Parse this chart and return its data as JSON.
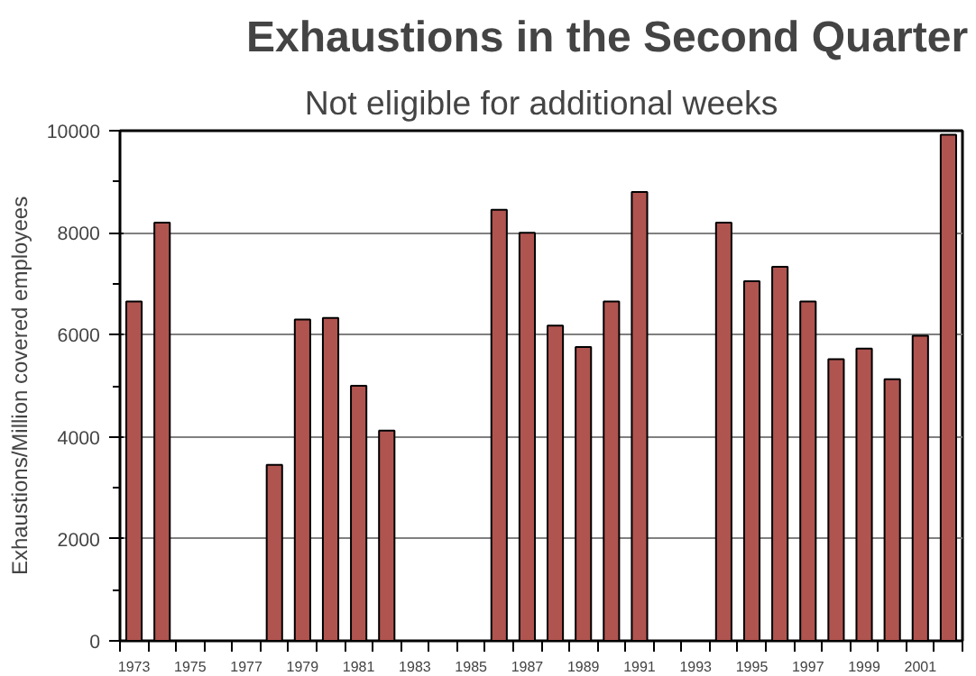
{
  "chart_data": {
    "type": "bar",
    "title": "Exhaustions in the Second Quarter",
    "subtitle": "Not eligible for additional weeks",
    "ylabel": "Exhaustions/Million covered employees",
    "categories": [
      "1973",
      null,
      "1975",
      null,
      "1977",
      null,
      "1979",
      null,
      "1981",
      null,
      "1983",
      null,
      "1985",
      null,
      "1987",
      null,
      "1989",
      null,
      "1991",
      null,
      "1993",
      null,
      "1995",
      null,
      "1997",
      null,
      "1999",
      null,
      "2001",
      null
    ],
    "values": [
      6650,
      8200,
      null,
      null,
      null,
      3450,
      6300,
      6330,
      5000,
      4120,
      null,
      null,
      null,
      8450,
      8000,
      6180,
      5760,
      6650,
      8800,
      null,
      null,
      8200,
      7050,
      7330,
      6650,
      5520,
      5730,
      5130,
      5980,
      9920
    ],
    "color": "#b05450",
    "ylim": [
      0,
      10000
    ],
    "yticks": [
      0,
      2000,
      4000,
      6000,
      8000,
      10000
    ],
    "grid": "y"
  }
}
